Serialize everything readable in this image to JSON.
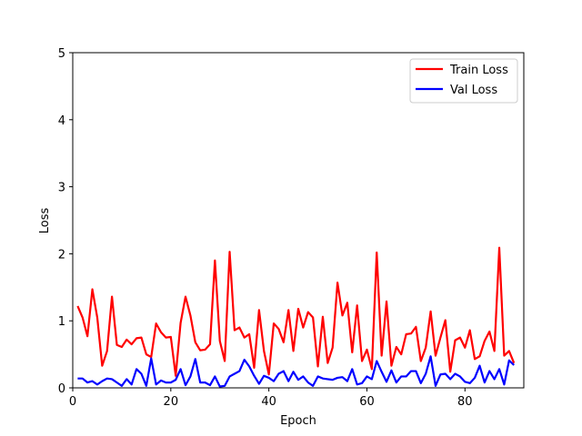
{
  "chart_data": {
    "type": "line",
    "title": "",
    "xlabel": "Epoch",
    "ylabel": "Loss",
    "xlim": [
      0,
      92
    ],
    "ylim": [
      0,
      5
    ],
    "xticks": [
      "0",
      "20",
      "40",
      "60",
      "80"
    ],
    "yticks": [
      "0",
      "1",
      "2",
      "3",
      "4",
      "5"
    ],
    "grid": false,
    "legend_position": "top-right",
    "x": [
      1,
      2,
      3,
      4,
      5,
      6,
      7,
      8,
      9,
      10,
      11,
      12,
      13,
      14,
      15,
      16,
      17,
      18,
      19,
      20,
      21,
      22,
      23,
      24,
      25,
      26,
      27,
      28,
      29,
      30,
      31,
      32,
      33,
      34,
      35,
      36,
      37,
      38,
      39,
      40,
      41,
      42,
      43,
      44,
      45,
      46,
      47,
      48,
      49,
      50,
      51,
      52,
      53,
      54,
      55,
      56,
      57,
      58,
      59,
      60,
      61,
      62,
      63,
      64,
      65,
      66,
      67,
      68,
      69,
      70,
      71,
      72,
      73,
      74,
      75,
      76,
      77,
      78,
      79,
      80,
      81,
      82,
      83,
      84,
      85,
      86,
      87,
      88,
      89,
      90
    ],
    "series": [
      {
        "name": "Train Loss",
        "color": "#ff0000",
        "values": [
          1.22,
          1.05,
          0.77,
          1.47,
          1.05,
          0.33,
          0.55,
          1.36,
          0.64,
          0.61,
          0.72,
          0.65,
          0.74,
          0.75,
          0.5,
          0.46,
          0.96,
          0.83,
          0.75,
          0.76,
          0.18,
          0.97,
          1.36,
          1.08,
          0.68,
          0.56,
          0.57,
          0.65,
          1.9,
          0.7,
          0.4,
          2.03,
          0.86,
          0.9,
          0.75,
          0.8,
          0.3,
          1.16,
          0.55,
          0.2,
          0.96,
          0.88,
          0.68,
          1.16,
          0.55,
          1.18,
          0.9,
          1.13,
          1.05,
          0.32,
          1.06,
          0.37,
          0.6,
          1.57,
          1.08,
          1.27,
          0.53,
          1.23,
          0.4,
          0.57,
          0.28,
          2.02,
          0.48,
          1.29,
          0.33,
          0.61,
          0.5,
          0.8,
          0.81,
          0.91,
          0.4,
          0.6,
          1.14,
          0.48,
          0.75,
          1.01,
          0.24,
          0.71,
          0.75,
          0.6,
          0.86,
          0.43,
          0.47,
          0.7,
          0.84,
          0.55,
          2.09,
          0.48,
          0.55,
          0.37
        ]
      },
      {
        "name": "Val Loss",
        "color": "#0000ff",
        "values": [
          0.14,
          0.14,
          0.08,
          0.1,
          0.05,
          0.1,
          0.14,
          0.13,
          0.08,
          0.03,
          0.13,
          0.05,
          0.28,
          0.21,
          0.03,
          0.44,
          0.05,
          0.11,
          0.08,
          0.08,
          0.12,
          0.28,
          0.04,
          0.17,
          0.43,
          0.08,
          0.08,
          0.04,
          0.17,
          0.02,
          0.03,
          0.17,
          0.21,
          0.25,
          0.42,
          0.32,
          0.18,
          0.06,
          0.18,
          0.15,
          0.1,
          0.21,
          0.25,
          0.1,
          0.24,
          0.12,
          0.17,
          0.08,
          0.03,
          0.17,
          0.14,
          0.13,
          0.12,
          0.15,
          0.16,
          0.1,
          0.28,
          0.05,
          0.07,
          0.17,
          0.13,
          0.4,
          0.24,
          0.09,
          0.26,
          0.08,
          0.17,
          0.17,
          0.25,
          0.25,
          0.07,
          0.21,
          0.47,
          0.03,
          0.2,
          0.21,
          0.13,
          0.21,
          0.17,
          0.09,
          0.07,
          0.15,
          0.33,
          0.08,
          0.25,
          0.13,
          0.28,
          0.05,
          0.41,
          0.34
        ]
      }
    ]
  }
}
